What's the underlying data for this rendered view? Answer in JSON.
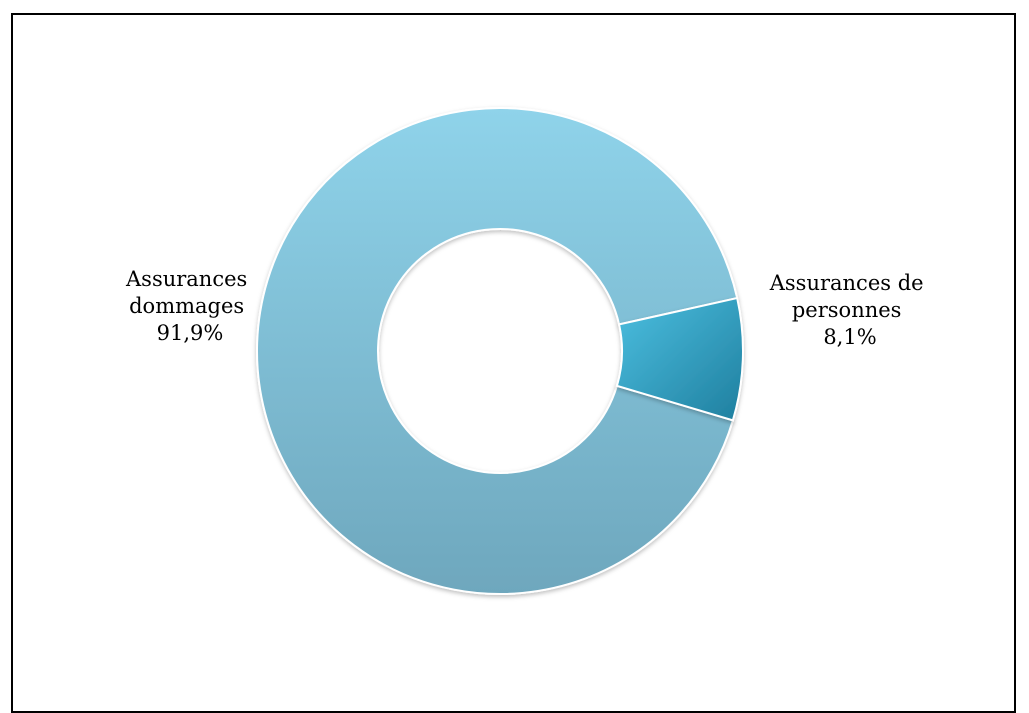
{
  "chart_data": {
    "type": "pie",
    "variant": "donut",
    "slices": [
      {
        "label_lines": [
          "Assurances",
          "dommages"
        ],
        "value_label": "91,9%",
        "value": 91.9,
        "color": "#8ccde3"
      },
      {
        "label_lines": [
          "Assurances de",
          "personnes"
        ],
        "value_label": "8,1%",
        "value": 8.1,
        "color": "#2b98bb"
      }
    ],
    "legend": "none"
  }
}
